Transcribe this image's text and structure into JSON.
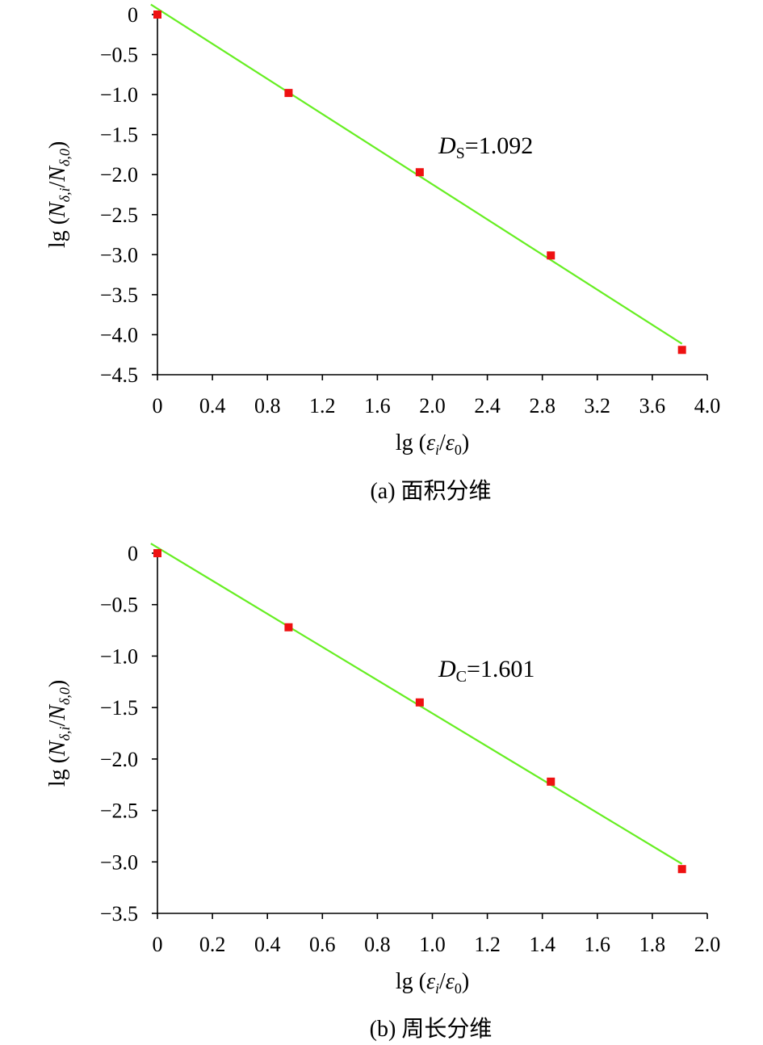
{
  "chart_data": [
    {
      "type": "scatter",
      "x": [
        0,
        0.954,
        1.908,
        2.862,
        3.816
      ],
      "y": [
        0,
        -0.98,
        -1.97,
        -3.01,
        -4.19
      ],
      "fit": {
        "type": "line",
        "slope": -1.092,
        "x_range": [
          0,
          3.816
        ],
        "color": "#66ee22"
      },
      "marker_color": "#ee1111",
      "xlim": [
        0,
        4.0
      ],
      "ylim": [
        -4.5,
        0
      ],
      "xticks": [
        "0",
        "0.4",
        "0.8",
        "1.2",
        "1.6",
        "2.0",
        "2.4",
        "2.8",
        "3.2",
        "3.6",
        "4.0"
      ],
      "yticks": [
        "0",
        "−0.5",
        "−1.0",
        "−1.5",
        "−2.0",
        "−2.5",
        "−3.0",
        "−3.5",
        "−4.0",
        "−4.5"
      ],
      "xlabel": {
        "prefix": "lg (",
        "num": "ε",
        "num_sub": "i",
        "slash": "/",
        "den": "ε",
        "den_sub": "0",
        "suffix": ")"
      },
      "ylabel": {
        "prefix": "lg (",
        "num": "N",
        "num_sub": "δ,i",
        "slash": "/",
        "den": "N",
        "den_sub": "δ,0",
        "suffix": ")"
      },
      "annotation": {
        "sym": "D",
        "sub": "S",
        "value": "=1.092"
      },
      "caption": "(a) 面积分维"
    },
    {
      "type": "scatter",
      "x": [
        0,
        0.477,
        0.954,
        1.431,
        1.908
      ],
      "y": [
        0,
        -0.72,
        -1.45,
        -2.22,
        -3.07
      ],
      "fit": {
        "type": "line",
        "slope": -1.601,
        "x_range": [
          0,
          1.908
        ],
        "color": "#66ee22"
      },
      "marker_color": "#ee1111",
      "xlim": [
        0,
        2.0
      ],
      "ylim": [
        -3.5,
        0
      ],
      "xticks": [
        "0",
        "0.2",
        "0.4",
        "0.6",
        "0.8",
        "1.0",
        "1.2",
        "1.4",
        "1.6",
        "1.8",
        "2.0"
      ],
      "yticks": [
        "0",
        "−0.5",
        "−1.0",
        "−1.5",
        "−2.0",
        "−2.5",
        "−3.0",
        "−3.5"
      ],
      "xlabel": {
        "prefix": "lg (",
        "num": "ε",
        "num_sub": "i",
        "slash": "/",
        "den": "ε",
        "den_sub": "0",
        "suffix": ")"
      },
      "ylabel": {
        "prefix": "lg (",
        "num": "N",
        "num_sub": "δ,i",
        "slash": "/",
        "den": "N",
        "den_sub": "δ,0",
        "suffix": ")"
      },
      "annotation": {
        "sym": "D",
        "sub": "C",
        "value": "=1.601"
      },
      "caption": "(b) 周长分维"
    }
  ]
}
